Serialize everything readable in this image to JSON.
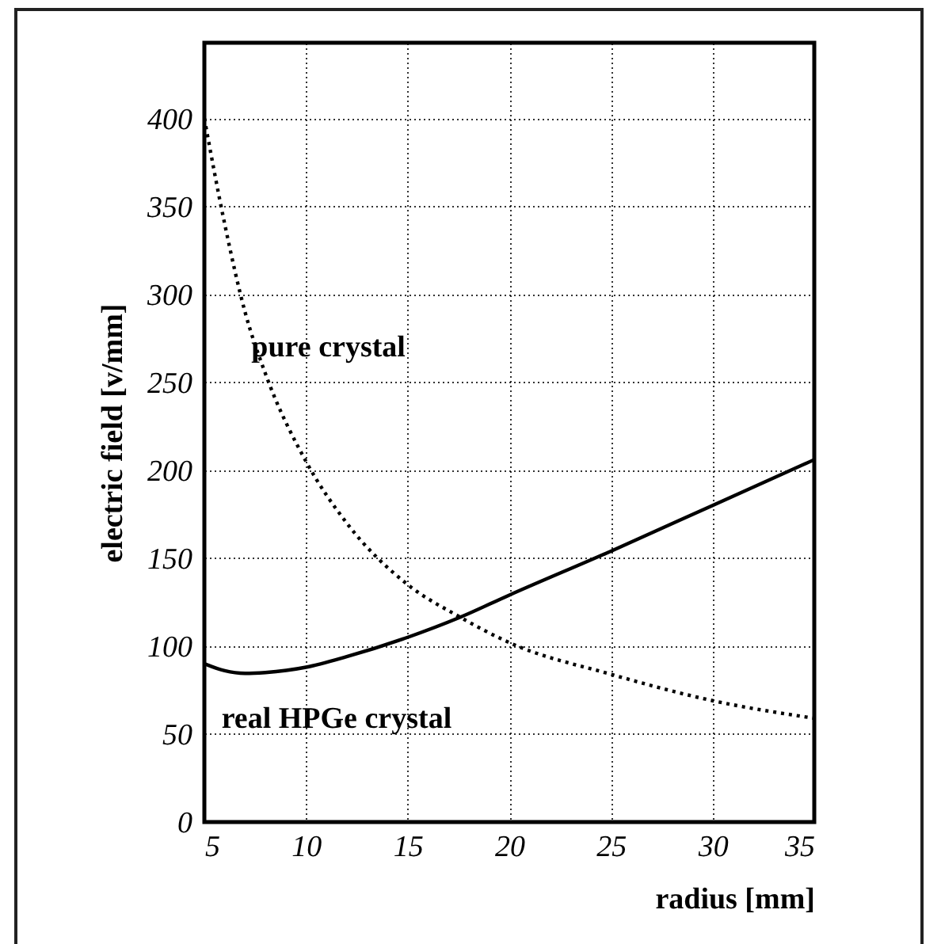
{
  "chart_data": {
    "type": "line",
    "xlabel": "radius [mm]",
    "ylabel": "electric field [v/mm]",
    "xlim": [
      5,
      35
    ],
    "xticks": [
      5,
      10,
      15,
      20,
      25,
      30,
      35
    ],
    "ylim": [
      0,
      443
    ],
    "yticks": [
      0,
      50,
      100,
      150,
      200,
      250,
      300,
      350,
      400
    ],
    "grid": true,
    "series": [
      {
        "name": "pure crystal",
        "color": "#000000",
        "line_style": "dotted",
        "x": [
          5,
          6,
          7,
          8,
          10,
          12,
          15,
          17.5,
          20,
          25,
          30,
          35
        ],
        "values": [
          400,
          340,
          290,
          255,
          205,
          170,
          135,
          117,
          102,
          84,
          69,
          59
        ]
      },
      {
        "name": "real HPGe crystal",
        "color": "#000000",
        "line_style": "solid",
        "x": [
          5,
          6,
          7,
          8,
          10,
          12,
          15,
          17.5,
          20,
          25,
          30,
          35
        ],
        "values": [
          90,
          86,
          84.5,
          85,
          88,
          94,
          105,
          116,
          129,
          154,
          180,
          206
        ]
      }
    ]
  }
}
